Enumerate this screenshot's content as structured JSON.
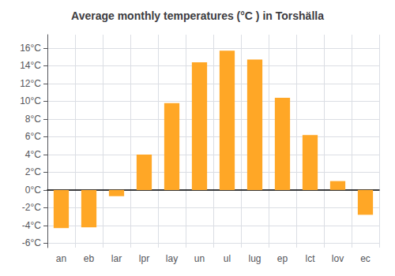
{
  "chart_data": {
    "type": "bar",
    "title": "Average monthly temperatures (°C ) in Torshälla",
    "categories": [
      "an",
      "eb",
      "lar",
      "lpr",
      "lay",
      "un",
      "ul",
      "lug",
      "ep",
      "lct",
      "lov",
      "ec"
    ],
    "values": [
      -4.3,
      -4.2,
      -0.7,
      4.0,
      9.8,
      14.4,
      15.7,
      14.7,
      10.4,
      6.2,
      1.0,
      -2.8
    ],
    "color": "#FFA726",
    "ylim": [
      -6.5,
      17.5
    ],
    "yticks": [
      {
        "value": -6,
        "label": "-6°C"
      },
      {
        "value": -4,
        "label": "-4°C"
      },
      {
        "value": -2,
        "label": "-2°C"
      },
      {
        "value": 0,
        "label": "0°C"
      },
      {
        "value": 2,
        "label": "2°C"
      },
      {
        "value": 4,
        "label": "4°C"
      },
      {
        "value": 6,
        "label": "6°C"
      },
      {
        "value": 8,
        "label": "8°C"
      },
      {
        "value": 10,
        "label": "10°C"
      },
      {
        "value": 12,
        "label": "12°C"
      },
      {
        "value": 14,
        "label": "14°C"
      },
      {
        "value": 16,
        "label": "16°C"
      }
    ],
    "grid": true
  }
}
